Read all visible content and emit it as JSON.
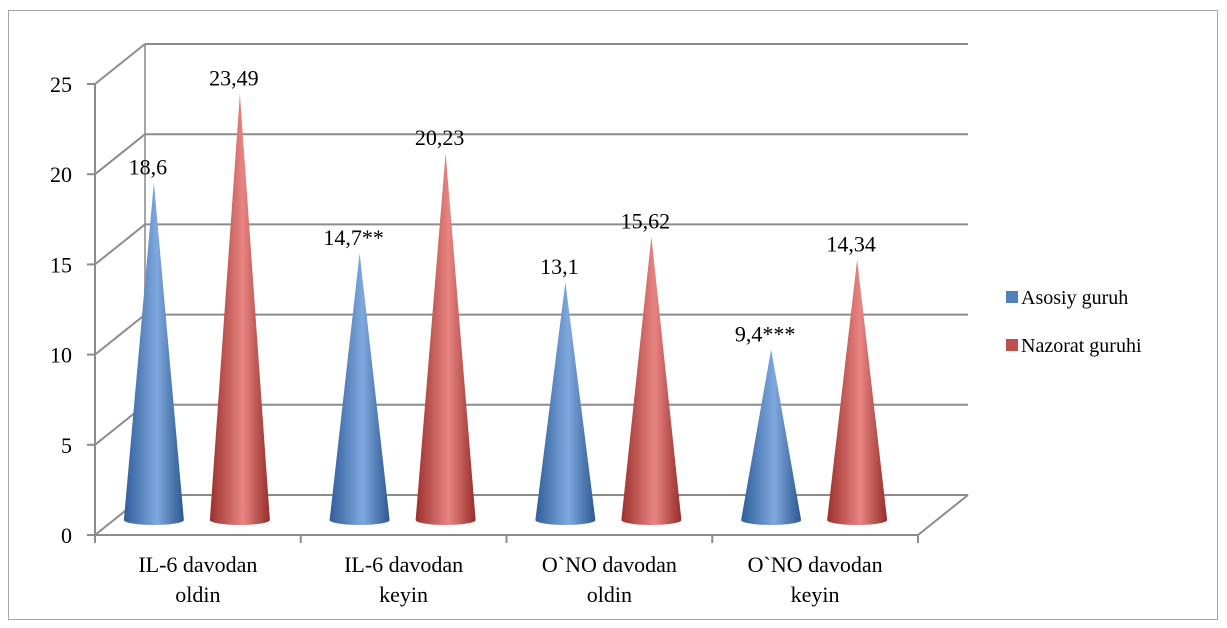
{
  "chart_data": {
    "type": "bar",
    "style": "3d-cone",
    "categories": [
      [
        "IL-6 davodan",
        "oldin"
      ],
      [
        "IL-6 davodan",
        "keyin"
      ],
      [
        "O`NO davodan",
        "oldin"
      ],
      [
        "O`NO davodan",
        "keyin"
      ]
    ],
    "series": [
      {
        "name": "Asosiy guruh",
        "color": "#4f81bd",
        "values": [
          18.6,
          14.7,
          13.1,
          9.4
        ],
        "labels": [
          "18,6",
          "14,7**",
          "13,1",
          "9,4***"
        ]
      },
      {
        "name": "Nazorat guruhi",
        "color": "#c0504d",
        "values": [
          23.49,
          20.23,
          15.62,
          14.34
        ],
        "labels": [
          "23,49",
          "20,23",
          "15,62",
          "14,34"
        ]
      }
    ],
    "ylim": [
      0,
      25
    ],
    "yticks": [
      "0",
      "5",
      "10",
      "15",
      "20",
      "25"
    ],
    "grid": true,
    "legend": "right"
  }
}
